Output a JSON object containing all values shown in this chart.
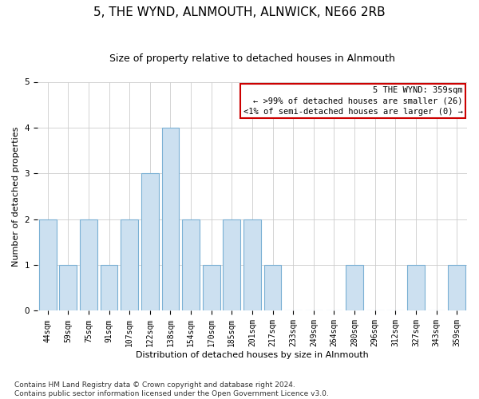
{
  "title": "5, THE WYND, ALNMOUTH, ALNWICK, NE66 2RB",
  "subtitle": "Size of property relative to detached houses in Alnmouth",
  "xlabel": "Distribution of detached houses by size in Alnmouth",
  "ylabel": "Number of detached properties",
  "categories": [
    "44sqm",
    "59sqm",
    "75sqm",
    "91sqm",
    "107sqm",
    "122sqm",
    "138sqm",
    "154sqm",
    "170sqm",
    "185sqm",
    "201sqm",
    "217sqm",
    "233sqm",
    "249sqm",
    "264sqm",
    "280sqm",
    "296sqm",
    "312sqm",
    "327sqm",
    "343sqm",
    "359sqm"
  ],
  "values": [
    2,
    1,
    2,
    1,
    2,
    3,
    4,
    2,
    1,
    2,
    2,
    1,
    0,
    0,
    0,
    1,
    0,
    0,
    1,
    0,
    1
  ],
  "bar_color": "#cce0f0",
  "bar_edge_color": "#7ab0d4",
  "annotation_box_text": "5 THE WYND: 359sqm\n← >99% of detached houses are smaller (26)\n<1% of semi-detached houses are larger (0) →",
  "annotation_box_edge_color": "#cc0000",
  "ylim": [
    0,
    5
  ],
  "yticks": [
    0,
    1,
    2,
    3,
    4,
    5
  ],
  "footnote": "Contains HM Land Registry data © Crown copyright and database right 2024.\nContains public sector information licensed under the Open Government Licence v3.0.",
  "bg_color": "#ffffff",
  "grid_color": "#cccccc",
  "title_fontsize": 11,
  "subtitle_fontsize": 9,
  "axis_label_fontsize": 8,
  "tick_fontsize": 7,
  "annotation_fontsize": 7.5,
  "footnote_fontsize": 6.5
}
